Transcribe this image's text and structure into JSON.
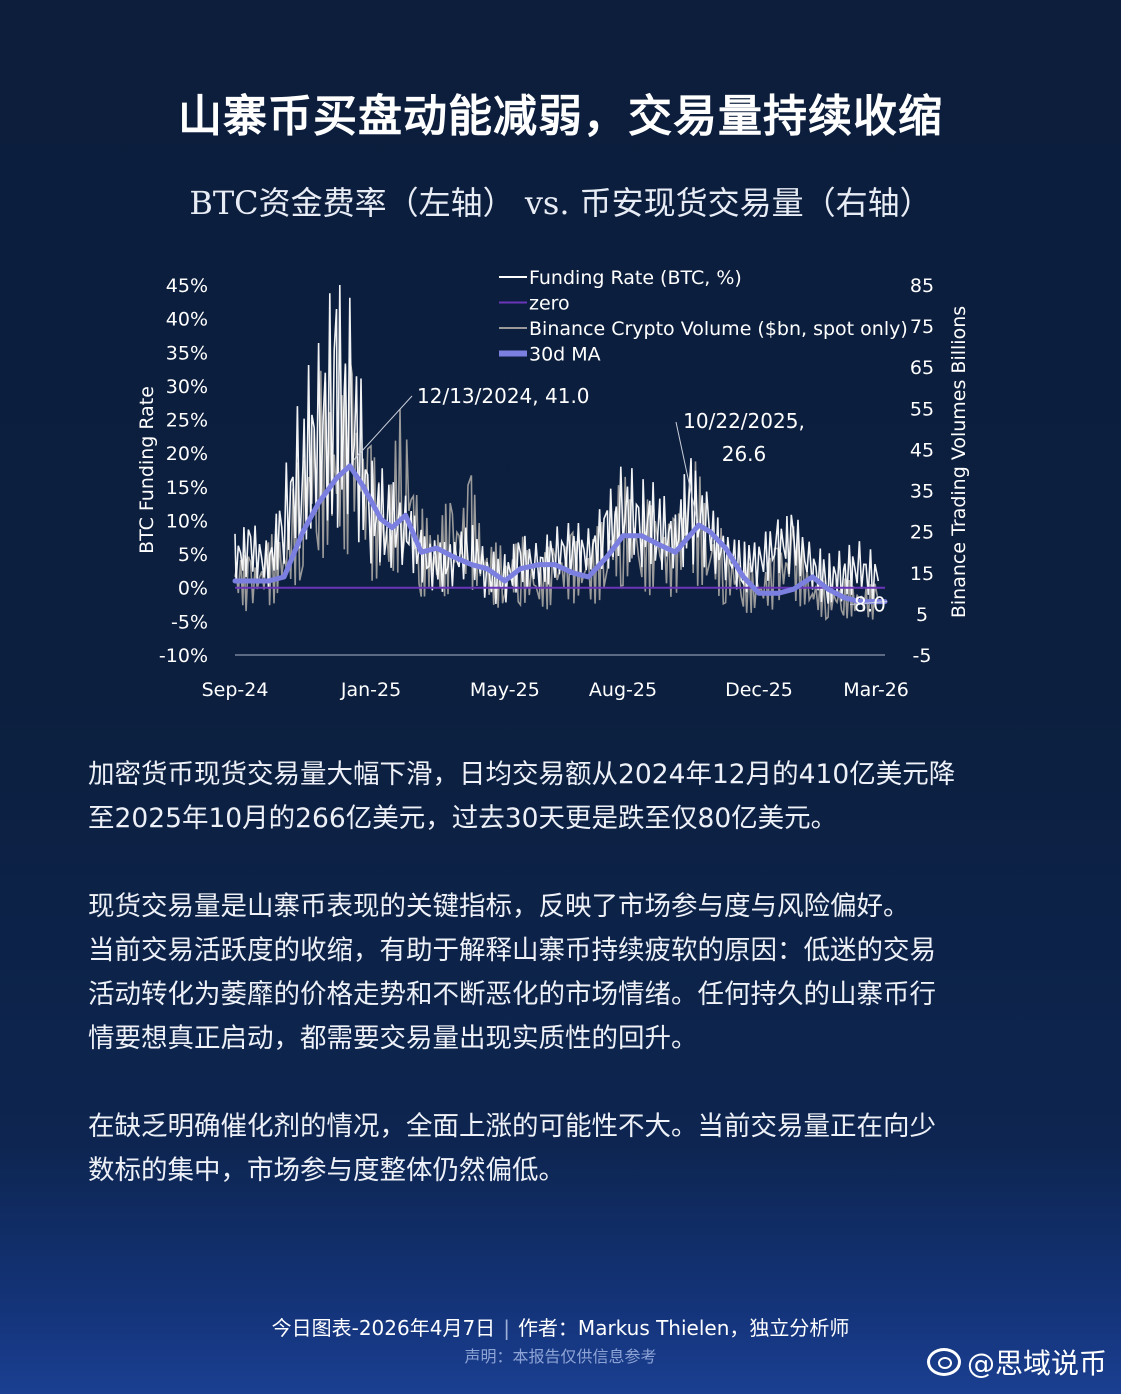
{
  "title": "山寨币买盘动能减弱，交易量持续收缩",
  "subtitle": "BTC资金费率（左轴） vs. 币安现货交易量（右轴）",
  "chart_data": {
    "type": "line",
    "xlabel": "",
    "ylabel_left": "BTC Funding Rate",
    "ylabel_right": "Binance Trading  Volumes Billions",
    "x_tick_labels": [
      "Sep-24",
      "Jan-25",
      "May-25",
      "Aug-25",
      "Dec-25",
      "Mar-26"
    ],
    "x_range": [
      "2024-09-01",
      "2026-04-07"
    ],
    "y_left_ticks": [
      "45%",
      "40%",
      "35%",
      "30%",
      "25%",
      "20%",
      "15%",
      "10%",
      "5%",
      "0%",
      "-5%",
      "-10%"
    ],
    "y_left_range": [
      -10,
      45
    ],
    "y_right_ticks": [
      "85",
      "75",
      "65",
      "55",
      "45",
      "35",
      "25",
      "15",
      "5",
      "-5"
    ],
    "y_right_range": [
      -5,
      85
    ],
    "grid": false,
    "legend_position": "top",
    "legend": [
      "Funding Rate (BTC, %)",
      "zero",
      "Binance Crypto Volume ($bn, spot only)",
      "30d MA"
    ],
    "colors": {
      "funding_rate": "#ffffff",
      "zero": "#6a35b8",
      "volume": "#9a9a9a",
      "ma30": "#7a7fe0",
      "axis_text": "#ffffff"
    },
    "series": [
      {
        "name": "30d MA",
        "axis": "right",
        "x": [
          "2024-09-01",
          "2024-09-15",
          "2024-10-01",
          "2024-10-15",
          "2024-11-01",
          "2024-11-15",
          "2024-12-01",
          "2024-12-13",
          "2024-12-25",
          "2025-01-10",
          "2025-01-20",
          "2025-02-01",
          "2025-02-15",
          "2025-03-01",
          "2025-03-15",
          "2025-04-01",
          "2025-04-15",
          "2025-05-01",
          "2025-05-15",
          "2025-06-01",
          "2025-06-15",
          "2025-07-01",
          "2025-07-15",
          "2025-08-01",
          "2025-08-15",
          "2025-09-01",
          "2025-09-15",
          "2025-10-01",
          "2025-10-22",
          "2025-11-01",
          "2025-11-15",
          "2025-12-01",
          "2025-12-15",
          "2026-01-01",
          "2026-01-15",
          "2026-02-01",
          "2026-02-15",
          "2026-03-01",
          "2026-03-15",
          "2026-04-01",
          "2026-04-07"
        ],
        "values": [
          13,
          13,
          13,
          14,
          25,
          32,
          38,
          41,
          36,
          28,
          26,
          29,
          20,
          21,
          19,
          17,
          16,
          13,
          16,
          17,
          17,
          15,
          14,
          19,
          24,
          24,
          22,
          20,
          26.6,
          25,
          21,
          14,
          10,
          10,
          11,
          14,
          11,
          9,
          8,
          8,
          8
        ]
      },
      {
        "name": "zero",
        "axis": "left",
        "x": [
          "2024-09-01",
          "2026-04-07"
        ],
        "values": [
          0,
          0
        ]
      },
      {
        "name": "Funding Rate (BTC, %)",
        "axis": "left",
        "x": [
          "2024-09-01",
          "2024-09-15",
          "2024-10-01",
          "2024-10-15",
          "2024-11-01",
          "2024-11-15",
          "2024-12-01",
          "2024-12-15",
          "2025-01-01",
          "2025-01-15",
          "2025-02-01",
          "2025-02-15",
          "2025-03-01",
          "2025-03-15",
          "2025-04-01",
          "2025-04-15",
          "2025-05-01",
          "2025-05-15",
          "2025-06-01",
          "2025-06-15",
          "2025-07-01",
          "2025-07-15",
          "2025-08-01",
          "2025-08-15",
          "2025-09-01",
          "2025-09-15",
          "2025-10-01",
          "2025-10-15",
          "2025-11-01",
          "2025-11-15",
          "2025-12-01",
          "2025-12-15",
          "2026-01-01",
          "2026-01-15",
          "2026-02-01",
          "2026-02-15",
          "2026-03-01",
          "2026-03-15",
          "2026-04-01"
        ],
        "values": [
          4,
          6,
          3,
          10,
          18,
          22,
          28,
          25,
          12,
          10,
          9,
          5,
          3,
          4,
          6,
          2,
          1,
          4,
          3,
          5,
          6,
          5,
          8,
          11,
          10,
          9,
          7,
          12,
          8,
          5,
          3,
          4,
          6,
          7,
          3,
          1,
          2,
          3,
          1
        ]
      },
      {
        "name": "Binance Crypto Volume ($bn, spot only)",
        "axis": "right",
        "x": [
          "2024-09-01",
          "2024-09-15",
          "2024-10-01",
          "2024-10-15",
          "2024-11-01",
          "2024-11-15",
          "2024-12-01",
          "2024-12-15",
          "2025-01-01",
          "2025-01-15",
          "2025-02-01",
          "2025-02-15",
          "2025-03-01",
          "2025-03-15",
          "2025-04-01",
          "2025-04-15",
          "2025-05-01",
          "2025-05-15",
          "2025-06-01",
          "2025-06-15",
          "2025-07-01",
          "2025-07-15",
          "2025-08-01",
          "2025-08-15",
          "2025-09-01",
          "2025-09-15",
          "2025-10-01",
          "2025-10-15",
          "2025-11-01",
          "2025-11-15",
          "2025-12-01",
          "2025-12-15",
          "2026-01-01",
          "2026-01-15",
          "2026-02-01",
          "2026-02-15",
          "2026-03-01",
          "2026-03-15",
          "2026-04-01"
        ],
        "values": [
          14,
          12,
          15,
          18,
          30,
          42,
          38,
          45,
          30,
          22,
          40,
          20,
          18,
          22,
          25,
          15,
          14,
          16,
          12,
          15,
          16,
          14,
          20,
          26,
          22,
          20,
          18,
          30,
          20,
          16,
          12,
          10,
          14,
          18,
          10,
          8,
          9,
          8,
          8
        ]
      }
    ],
    "annotations": [
      {
        "text": "12/13/2024, 41.0",
        "x": "2024-12-13",
        "y": 41.0,
        "axis": "right"
      },
      {
        "text": "10/22/2025,",
        "text2": "26.6",
        "x": "2025-10-22",
        "y": 26.6,
        "axis": "right"
      },
      {
        "text": "8.0",
        "x": "2026-04-07",
        "y": 8.0,
        "axis": "right"
      }
    ]
  },
  "paragraphs": [
    "加密货币现货交易量大幅下滑，日均交易额从2024年12月的410亿美元降\n至2025年10月的266亿美元，过去30天更是跌至仅80亿美元。",
    "现货交易量是山寨币表现的关键指标，反映了市场参与度与风险偏好。\n当前交易活跃度的收缩，有助于解释山寨币持续疲软的原因：低迷的交易\n活动转化为萎靡的价格走势和不断恶化的市场情绪。任何持久的山寨币行\n情要想真正启动，都需要交易量出现实质性的回升。",
    "在缺乏明确催化剂的情况，全面上涨的可能性不大。当前交易量正在向少\n数标的集中，市场参与度整体仍然偏低。"
  ],
  "footer": {
    "date": "今日图表-2026年4月7日",
    "sep": "|",
    "author": "作者：Markus Thielen，独立分析师",
    "note": "声明：本报告仅供信息参考"
  },
  "watermark": "@思域说币"
}
